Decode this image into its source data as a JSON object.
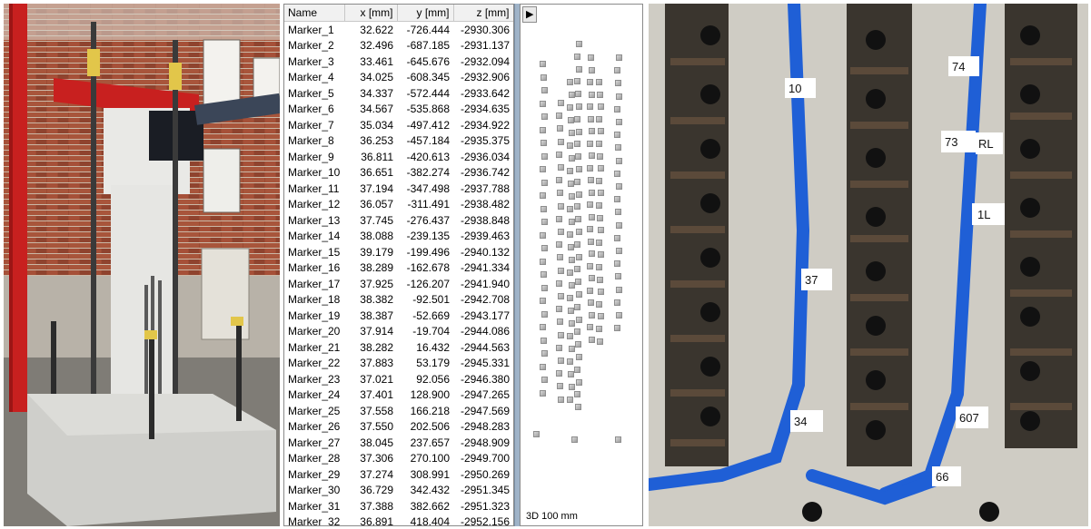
{
  "table": {
    "headers": [
      "Name",
      "x [mm]",
      "y [mm]",
      "z [mm]"
    ],
    "rows": [
      [
        "Marker_1",
        "32.622",
        "-726.444",
        "-2930.306"
      ],
      [
        "Marker_2",
        "32.496",
        "-687.185",
        "-2931.137"
      ],
      [
        "Marker_3",
        "33.461",
        "-645.676",
        "-2932.094"
      ],
      [
        "Marker_4",
        "34.025",
        "-608.345",
        "-2932.906"
      ],
      [
        "Marker_5",
        "34.337",
        "-572.444",
        "-2933.642"
      ],
      [
        "Marker_6",
        "34.567",
        "-535.868",
        "-2934.635"
      ],
      [
        "Marker_7",
        "35.034",
        "-497.412",
        "-2934.922"
      ],
      [
        "Marker_8",
        "36.253",
        "-457.184",
        "-2935.375"
      ],
      [
        "Marker_9",
        "36.811",
        "-420.613",
        "-2936.034"
      ],
      [
        "Marker_10",
        "36.651",
        "-382.274",
        "-2936.742"
      ],
      [
        "Marker_11",
        "37.194",
        "-347.498",
        "-2937.788"
      ],
      [
        "Marker_12",
        "36.057",
        "-311.491",
        "-2938.482"
      ],
      [
        "Marker_13",
        "37.745",
        "-276.437",
        "-2938.848"
      ],
      [
        "Marker_14",
        "38.088",
        "-239.135",
        "-2939.463"
      ],
      [
        "Marker_15",
        "39.179",
        "-199.496",
        "-2940.132"
      ],
      [
        "Marker_16",
        "38.289",
        "-162.678",
        "-2941.334"
      ],
      [
        "Marker_17",
        "37.925",
        "-126.207",
        "-2941.940"
      ],
      [
        "Marker_18",
        "38.382",
        "-92.501",
        "-2942.708"
      ],
      [
        "Marker_19",
        "38.387",
        "-52.669",
        "-2943.177"
      ],
      [
        "Marker_20",
        "37.914",
        "-19.704",
        "-2944.086"
      ],
      [
        "Marker_21",
        "38.282",
        "16.432",
        "-2944.563"
      ],
      [
        "Marker_22",
        "37.883",
        "53.179",
        "-2945.331"
      ],
      [
        "Marker_23",
        "37.021",
        "92.056",
        "-2946.380"
      ],
      [
        "Marker_24",
        "37.401",
        "128.900",
        "-2947.265"
      ],
      [
        "Marker_25",
        "37.558",
        "166.218",
        "-2947.569"
      ],
      [
        "Marker_26",
        "37.550",
        "202.506",
        "-2948.283"
      ],
      [
        "Marker_27",
        "38.045",
        "237.657",
        "-2948.909"
      ],
      [
        "Marker_28",
        "37.306",
        "270.100",
        "-2949.700"
      ],
      [
        "Marker_29",
        "37.274",
        "308.991",
        "-2950.269"
      ],
      [
        "Marker_30",
        "36.729",
        "342.432",
        "-2951.345"
      ],
      [
        "Marker_31",
        "37.388",
        "382.662",
        "-2951.323"
      ],
      [
        "Marker_32",
        "36.891",
        "418.404",
        "-2952.156"
      ]
    ]
  },
  "view3d": {
    "expand_icon": "play-triangle-icon",
    "expand_glyph": "▶",
    "scale_label": "3D 100 mm",
    "marker_color": "#b0b0b0"
  },
  "photo_right": {
    "tags": [
      "10",
      "74",
      "73",
      "RL",
      "1L",
      "37",
      "34",
      "607",
      "66"
    ],
    "tape_color": "#1f5fd6"
  },
  "photo_left": {
    "beam_color": "#c8201f"
  }
}
